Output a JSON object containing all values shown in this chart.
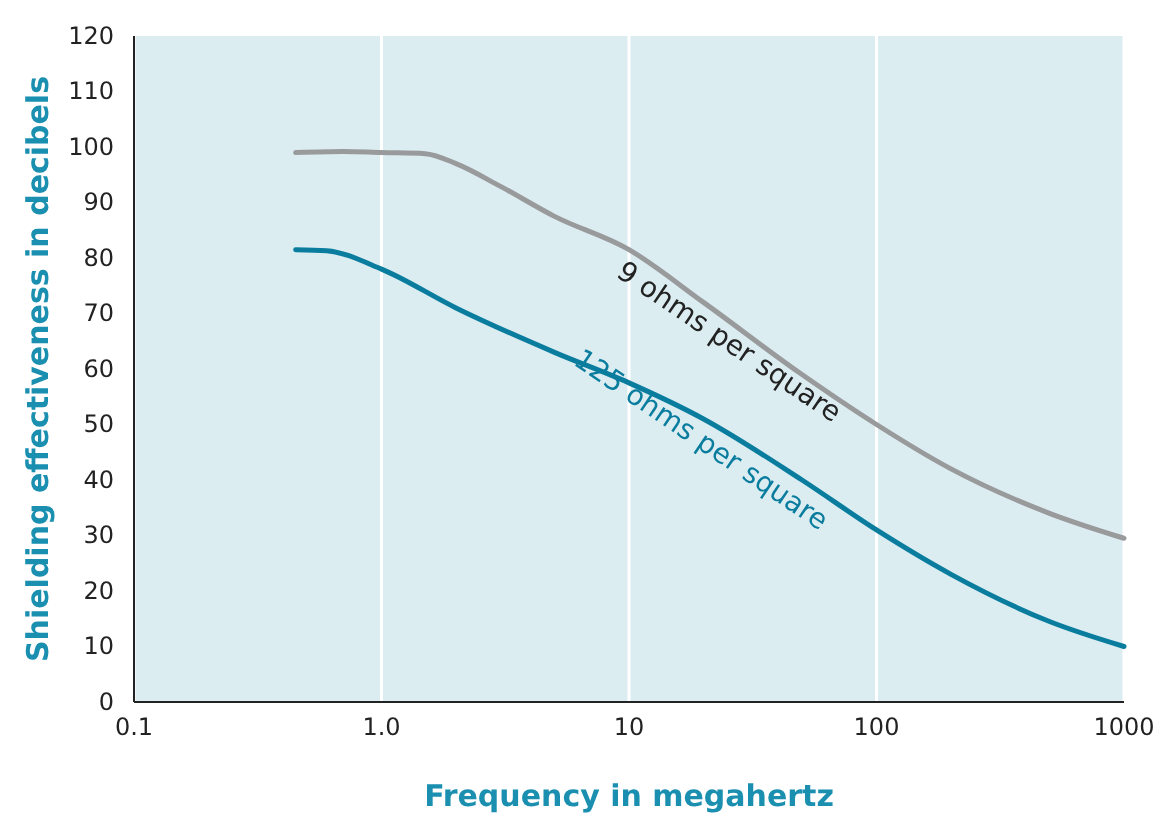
{
  "chart_data": {
    "type": "line",
    "xlabel": "Frequency in megahertz",
    "ylabel": "Shielding effectiveness in decibels",
    "log": "x",
    "grid": "x",
    "xlim": [
      0.1,
      1000
    ],
    "xticks": [
      0.1,
      {
        "value": 1,
        "label": "1.0"
      },
      10,
      100,
      1000
    ],
    "ylim": [
      0,
      120
    ],
    "yticks": [
      0,
      10,
      20,
      30,
      40,
      50,
      60,
      70,
      80,
      90,
      100,
      110,
      120
    ],
    "series": [
      {
        "name": "9 ohms per square",
        "color": "#999a9c",
        "x": [
          0.45,
          0.7,
          1,
          1.5,
          2,
          3,
          5,
          10,
          20,
          50,
          100,
          200,
          500,
          1000
        ],
        "values": [
          99,
          99.2,
          99,
          98.8,
          97,
          93,
          87.5,
          81.5,
          72,
          59,
          50,
          42,
          34,
          29.5
        ]
      },
      {
        "name": "125 ohms per square",
        "color": "#0a7d9e",
        "x": [
          0.45,
          0.6,
          1,
          2,
          5,
          10,
          20,
          50,
          100,
          200,
          500,
          1000
        ],
        "values": [
          81.5,
          81.3,
          78,
          71,
          63,
          57.5,
          51,
          40,
          31,
          23,
          14.5,
          10
        ]
      }
    ]
  }
}
